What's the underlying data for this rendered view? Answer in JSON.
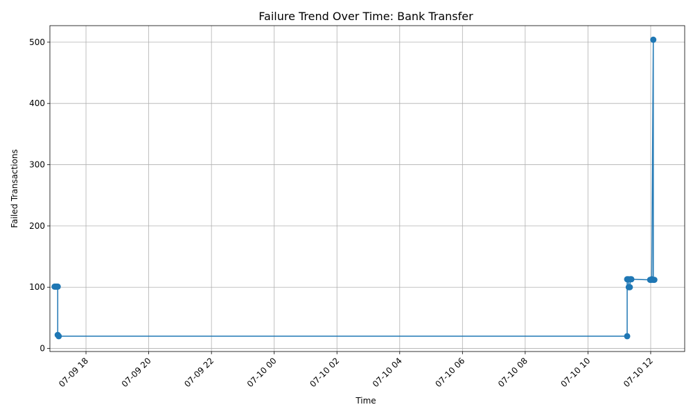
{
  "chart_data": {
    "type": "line",
    "title": "Failure Trend Over Time: Bank Transfer",
    "xlabel": "Time",
    "ylabel": "Failed Transactions",
    "x_axis": {
      "scale": "time",
      "range": [
        "2024-07-09T16:51",
        "2024-07-10T13:05"
      ],
      "tick_values": [
        "2024-07-09T18:00",
        "2024-07-09T20:00",
        "2024-07-09T22:00",
        "2024-07-10T00:00",
        "2024-07-10T02:00",
        "2024-07-10T04:00",
        "2024-07-10T06:00",
        "2024-07-10T08:00",
        "2024-07-10T10:00",
        "2024-07-10T12:00"
      ],
      "tick_labels": [
        "07-09 18",
        "07-09 20",
        "07-09 22",
        "07-10 00",
        "07-10 02",
        "07-10 04",
        "07-10 06",
        "07-10 08",
        "07-10 10",
        "07-10 12"
      ]
    },
    "y_axis": {
      "range": [
        -5,
        527
      ],
      "ticks": [
        0,
        100,
        200,
        300,
        400,
        500
      ],
      "tick_labels": [
        "0",
        "100",
        "200",
        "300",
        "400",
        "500"
      ]
    },
    "grid": true,
    "series": [
      {
        "color": "#1f77b4",
        "marker": "circle",
        "points": [
          {
            "x": "2024-07-09T17:00",
            "y": 101
          },
          {
            "x": "2024-07-09T17:02",
            "y": 101
          },
          {
            "x": "2024-07-09T17:04",
            "y": 101
          },
          {
            "x": "2024-07-09T17:06",
            "y": 101
          },
          {
            "x": "2024-07-09T17:06",
            "y": 22
          },
          {
            "x": "2024-07-09T17:08",
            "y": 20
          },
          {
            "x": "2024-07-10T11:15",
            "y": 20
          },
          {
            "x": "2024-07-10T11:15",
            "y": 113
          },
          {
            "x": "2024-07-10T11:17",
            "y": 113
          },
          {
            "x": "2024-07-10T11:18",
            "y": 100
          },
          {
            "x": "2024-07-10T11:20",
            "y": 100
          },
          {
            "x": "2024-07-10T11:21",
            "y": 113
          },
          {
            "x": "2024-07-10T11:23",
            "y": 113
          },
          {
            "x": "2024-07-10T11:59",
            "y": 112
          },
          {
            "x": "2024-07-10T12:01",
            "y": 112
          },
          {
            "x": "2024-07-10T12:02",
            "y": 113
          },
          {
            "x": "2024-07-10T12:05",
            "y": 504
          },
          {
            "x": "2024-07-10T12:05",
            "y": 112
          },
          {
            "x": "2024-07-10T12:07",
            "y": 112
          }
        ]
      }
    ]
  }
}
